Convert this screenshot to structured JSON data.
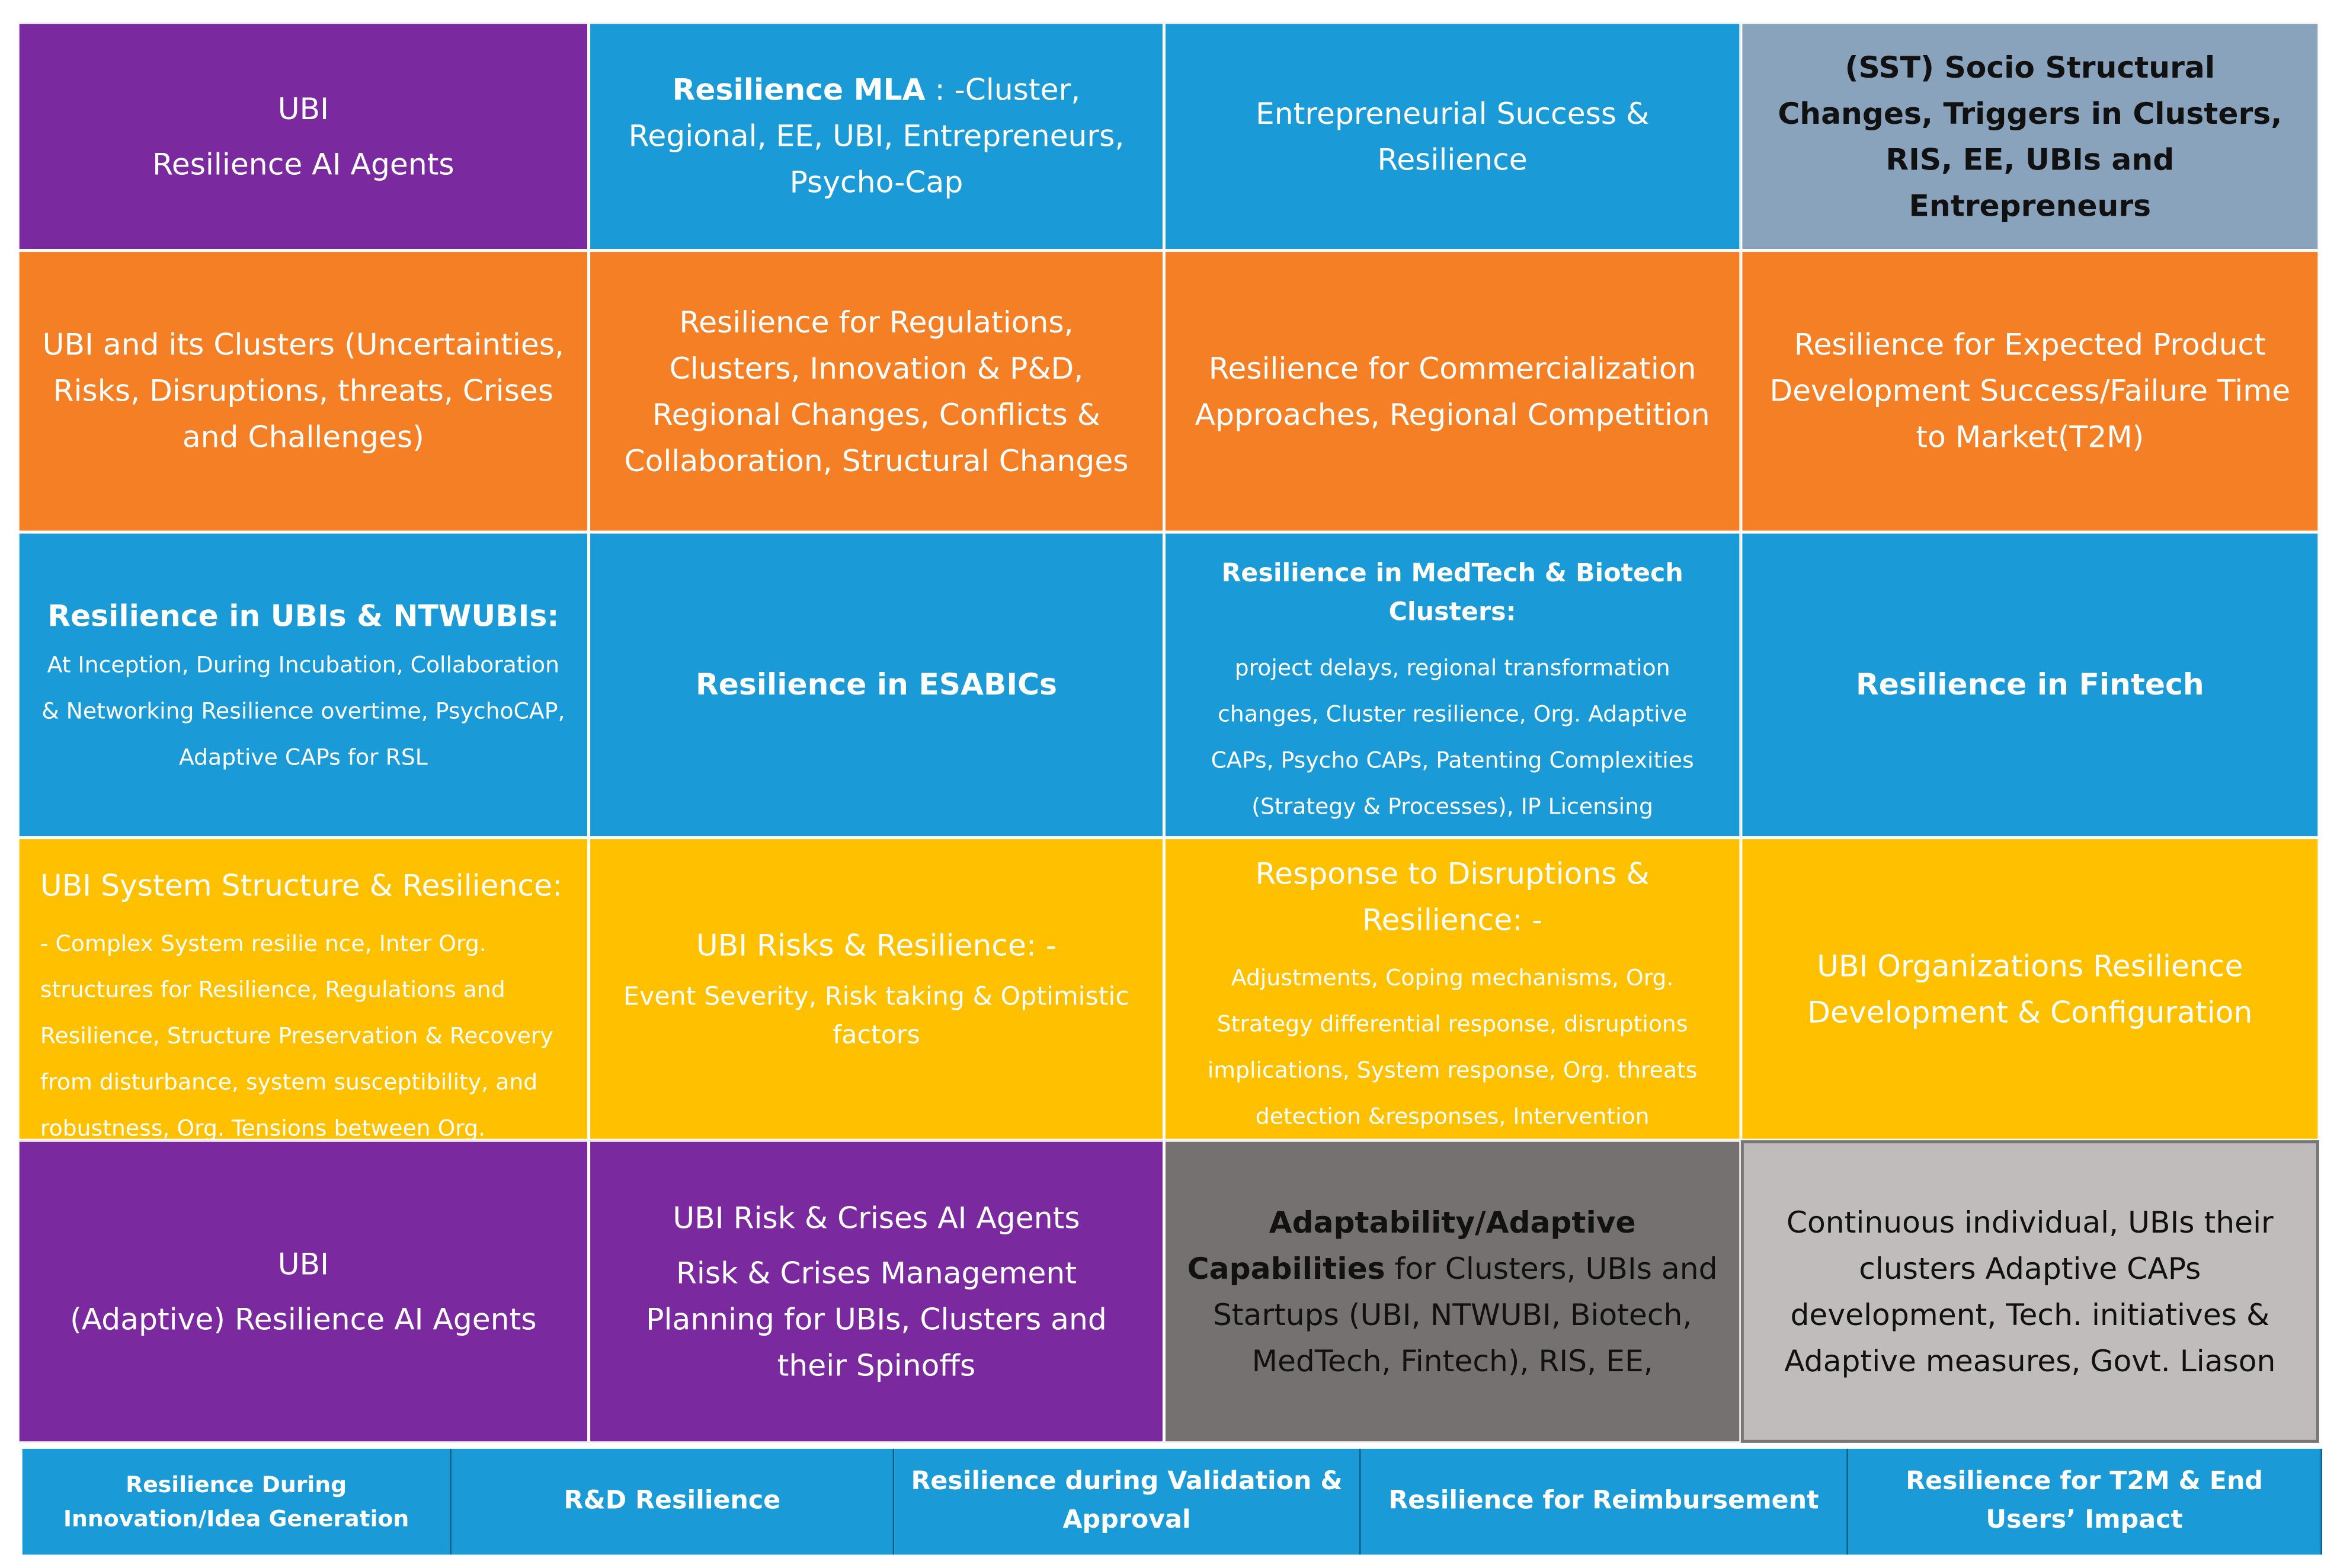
{
  "rows": [
    [
      {
        "title": "UBI",
        "body": "Resilience AI Agents"
      },
      {
        "title": "Resilience MLA",
        "body": ": -Cluster, Regional, EE, UBI, Entrepreneurs, Psycho-Cap"
      },
      {
        "body": "Entrepreneurial Success & Resilience"
      },
      {
        "title": "(SST) Socio Structural Changes, Triggers in Clusters, RIS, EE, UBIs and Entrepreneurs"
      }
    ],
    [
      {
        "body": "UBI and its Clusters (Uncertainties, Risks, Disruptions, threats, Crises and Challenges)"
      },
      {
        "body": "Resilience for Regulations, Clusters, Innovation & P&D, Regional Changes, Conflicts & Collaboration, Structural Changes"
      },
      {
        "body": "Resilience for Commercialization Approaches, Regional Competition"
      },
      {
        "body": "Resilience for Expected Product Development Success/Failure Time to Market(T2M)"
      }
    ],
    [
      {
        "title": "Resilience in UBIs & NTWUBIs:",
        "body": "At Inception, During Incubation, Collaboration & Networking Resilience overtime, PsychoCAP, Adaptive CAPs for RSL"
      },
      {
        "title": "Resilience in ESABICs"
      },
      {
        "title": "Resilience in MedTech & Biotech Clusters:",
        "body": "project delays, regional transformation changes, Cluster resilience, Org. Adaptive CAPs, Psycho CAPs, Patenting Complexities (Strategy & Processes), IP Licensing Conditions;Tolerance to research RD"
      },
      {
        "title": "Resilience in Fintech"
      }
    ],
    [
      {
        "title": "UBI System Structure & Resilience:",
        "body": "- Complex System resilie nce, Inter Org. structures for Resilience, Regulations and Resilience, Structure Preservation & Recovery from disturbance, system susceptibility, and robustness, Org. Tensions between Org. Stability needs &"
      },
      {
        "title": "UBI Risks & Resilience: -",
        "body": "Event Severity, Risk taking & Optimistic factors"
      },
      {
        "title": "Response to Disruptions & Resilience: -",
        "body": "Adjustments, Coping mechanisms, Org. Strategy differential response, disruptions implications, System response, Org. threats detection &responses, Intervention"
      },
      {
        "body": "UBI Organizations Resilience Development & Configuration"
      }
    ],
    [
      {
        "title": "UBI",
        "body": "(Adaptive) Resilience AI Agents"
      },
      {
        "title": "UBI Risk & Crises AI Agents",
        "body": "Risk & Crises Management Planning for UBIs, Clusters and their Spinoffs"
      },
      {
        "title": "Adaptability/Adaptive Capabilities",
        "body": "for Clusters, UBIs and Startups (UBI, NTWUBI, Biotech, MedTech, Fintech), RIS, EE,"
      },
      {
        "body": "Continuous individual, UBIs their clusters Adaptive CAPs development, Tech. initiatives & Adaptive measures, Govt. Liason"
      }
    ]
  ],
  "footer": [
    "Resilience During Innovation/Idea Generation",
    "R&D Resilience",
    "Resilience during Validation & Approval",
    "Resilience for Reimbursement",
    "Resilience for T2M & End Users’ Impact"
  ]
}
